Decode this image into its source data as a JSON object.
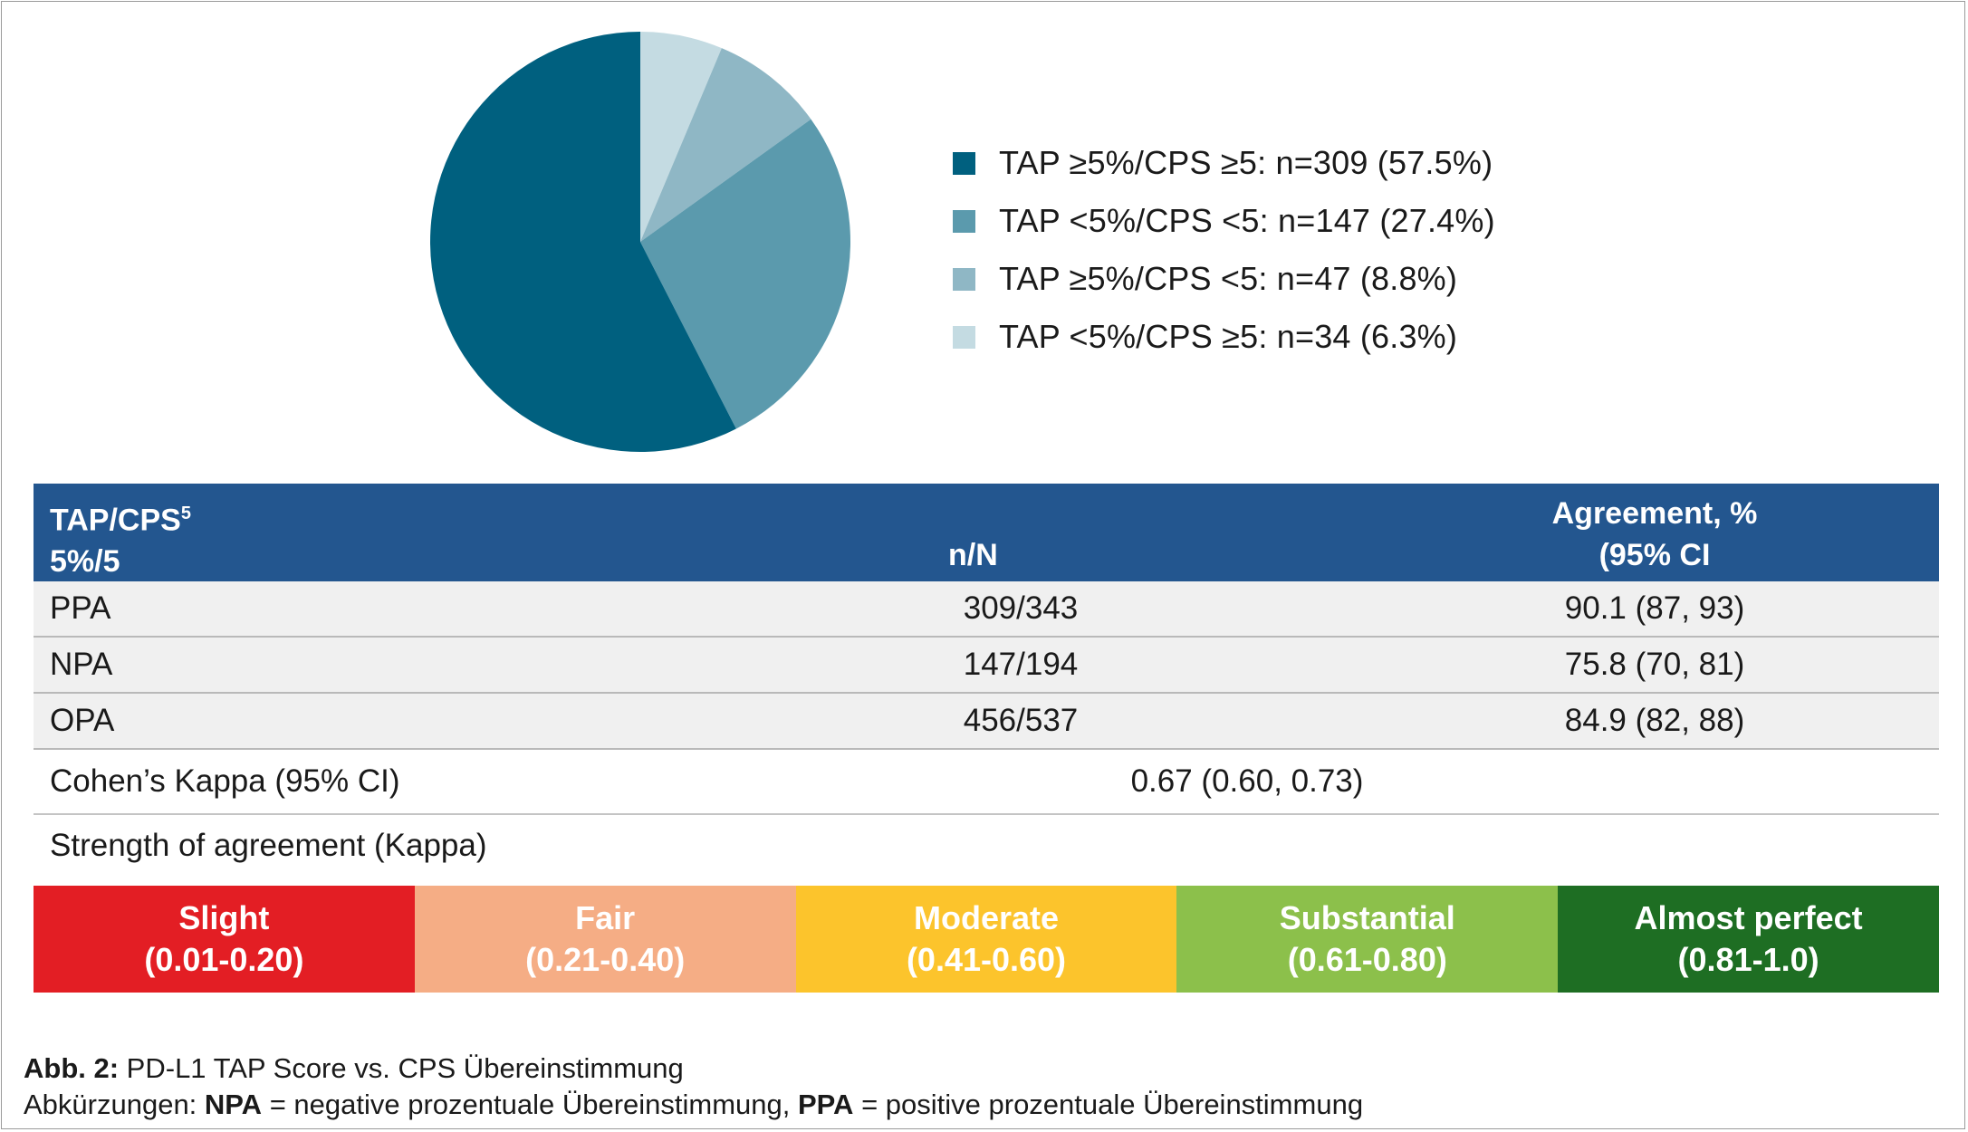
{
  "chart_data": [
    {
      "type": "pie",
      "slices": [
        {
          "label": "TAP ≥5%/CPS ≥5: n=309 (57.5%)",
          "n": 309,
          "percent": 57.5,
          "color": "#00607f"
        },
        {
          "label": "TAP <5%/CPS <5: n=147 (27.4%)",
          "n": 147,
          "percent": 27.4,
          "color": "#5b9aad"
        },
        {
          "label": "TAP ≥5%/CPS <5: n=47 (8.8%)",
          "n": 47,
          "percent": 8.8,
          "color": "#8fb7c5"
        },
        {
          "label": "TAP <5%/CPS ≥5: n=34 (6.3%)",
          "n": 34,
          "percent": 6.3,
          "color": "#c4dbe2"
        }
      ],
      "legend_position": "right"
    },
    {
      "type": "table",
      "header": {
        "col1_line1": "TAP/CPS",
        "col1_sup": "5",
        "col1_line2": "5%/5",
        "col2": "n/N",
        "col3_line1": "Agreement, %",
        "col3_line2": "(95% CI"
      },
      "rows": [
        {
          "label": "PPA",
          "nN": "309/343",
          "agreement": "90.1 (87, 93)"
        },
        {
          "label": "NPA",
          "nN": "147/194",
          "agreement": "75.8 (70, 81)"
        },
        {
          "label": "OPA",
          "nN": "456/537",
          "agreement": "84.9 (82, 88)"
        }
      ],
      "kappa": {
        "label": "Cohen’s Kappa (95% CI)",
        "value": "0.67 (0.60, 0.73)"
      },
      "strength_label": "Strength of agreement (Kappa)",
      "scale": [
        {
          "name": "Slight",
          "range": "(0.01-0.20)",
          "color": "#e31e24"
        },
        {
          "name": "Fair",
          "range": "(0.21-0.40)",
          "color": "#f5ad85"
        },
        {
          "name": "Moderate",
          "range": "(0.41-0.60)",
          "color": "#fcc42c"
        },
        {
          "name": "Substantial",
          "range": "(0.61-0.80)",
          "color": "#8cc04b"
        },
        {
          "name": "Almost perfect",
          "range": "(0.81-1.0)",
          "color": "#1e6e23"
        }
      ]
    }
  ],
  "caption": {
    "fig_label": "Abb. 2:",
    "fig_title": " PD-L1 TAP Score vs. CPS Übereinstimmung",
    "abbr_prefix": "Abkürzungen: ",
    "npa_term": "NPA",
    "npa_def": " = negative prozentuale Übereinstimmung, ",
    "ppa_term": "PPA",
    "ppa_def": " = positive prozentuale Übereinstimmung"
  }
}
